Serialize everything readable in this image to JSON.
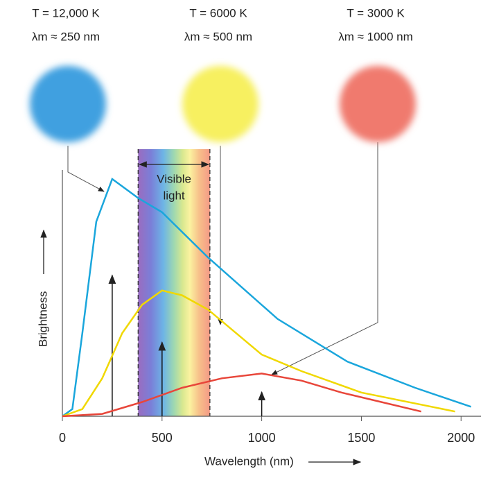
{
  "chart_data": {
    "type": "line",
    "xlabel": "Wavelength (nm)",
    "ylabel": "Brightness",
    "xlim": [
      0,
      2100
    ],
    "xticks": [
      0,
      500,
      1000,
      1500,
      2000
    ],
    "ylim": [
      0,
      100
    ],
    "visible_range": [
      380,
      740
    ],
    "visible_label": [
      "Visible",
      "light"
    ],
    "series": [
      {
        "name": "T = 12,000 K",
        "peak_label": "λm ≈ 250 nm",
        "color": "#1aa6dc",
        "glow": "#3fa0e0",
        "peak_x": 250,
        "x": [
          0,
          50,
          100,
          170,
          250,
          380,
          500,
          730,
          1080,
          1430,
          1770,
          2050
        ],
        "values": [
          0,
          3,
          35,
          82,
          100,
          92,
          86,
          67,
          41,
          23,
          12,
          4
        ]
      },
      {
        "name": "T = 6000 K",
        "peak_label": "λm ≈ 500 nm",
        "color": "#f0d800",
        "glow": "#f7f060",
        "peak_x": 500,
        "x": [
          0,
          100,
          200,
          300,
          400,
          500,
          600,
          730,
          1000,
          1200,
          1500,
          1970
        ],
        "values": [
          0,
          3,
          16,
          35,
          47,
          53,
          51,
          45,
          26,
          19,
          10,
          2
        ]
      },
      {
        "name": "T = 3000 K",
        "peak_label": "λm ≈ 1000 nm",
        "color": "#e8463a",
        "glow": "#f07a6e",
        "peak_x": 1000,
        "x": [
          0,
          200,
          400,
          600,
          800,
          1000,
          1200,
          1400,
          1600,
          1800
        ],
        "values": [
          0,
          1,
          6,
          12,
          16,
          18,
          15,
          10,
          6,
          2
        ]
      }
    ]
  }
}
